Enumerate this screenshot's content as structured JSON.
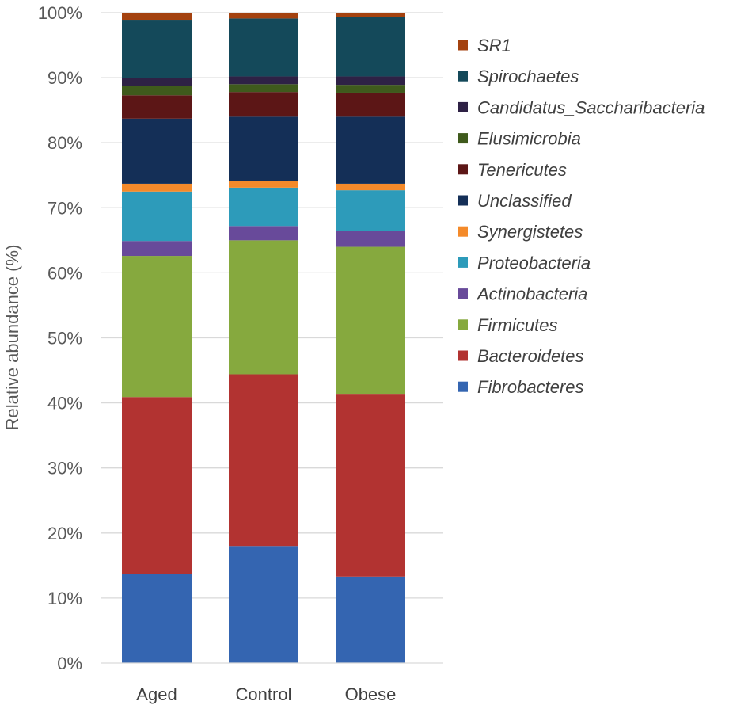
{
  "chart_data": {
    "type": "stacked-bar-100",
    "title": "",
    "xlabel": "",
    "ylabel": "Relative abundance (%)",
    "ylim": [
      0,
      100
    ],
    "yticks": [
      0,
      10,
      20,
      30,
      40,
      50,
      60,
      70,
      80,
      90,
      100
    ],
    "ytick_labels": [
      "0%",
      "10%",
      "20%",
      "30%",
      "40%",
      "50%",
      "60%",
      "70%",
      "80%",
      "90%",
      "100%"
    ],
    "grid": true,
    "legend_position": "right",
    "categories": [
      "Aged",
      "Control",
      "Obese"
    ],
    "series": [
      {
        "name": "Fibrobacteres",
        "color": "#3465B1",
        "values": [
          13.7,
          18.0,
          13.3
        ]
      },
      {
        "name": "Bacteroidetes",
        "color": "#B23331",
        "values": [
          27.2,
          26.4,
          28.1
        ]
      },
      {
        "name": "Firmicutes",
        "color": "#86A93E",
        "values": [
          21.7,
          20.6,
          22.6
        ]
      },
      {
        "name": "Actinobacteria",
        "color": "#684A9A",
        "values": [
          2.3,
          2.2,
          2.5
        ]
      },
      {
        "name": "Proteobacteria",
        "color": "#2D9BBA",
        "values": [
          7.6,
          5.9,
          6.2
        ]
      },
      {
        "name": "Synergistetes",
        "color": "#F48A2A",
        "values": [
          1.2,
          1.0,
          1.0
        ]
      },
      {
        "name": "Unclassified",
        "color": "#142F57",
        "values": [
          10.0,
          9.9,
          10.3
        ]
      },
      {
        "name": "Tenericutes",
        "color": "#5C1616",
        "values": [
          3.6,
          3.8,
          3.7
        ]
      },
      {
        "name": "Elusimicrobia",
        "color": "#3F5A1C",
        "values": [
          1.4,
          1.2,
          1.2
        ]
      },
      {
        "name": "Candidatus_Saccharibacteria",
        "color": "#2E2145",
        "values": [
          1.3,
          1.2,
          1.3
        ]
      },
      {
        "name": "Spirochaetes",
        "color": "#14495A",
        "values": [
          8.9,
          8.9,
          9.1
        ]
      },
      {
        "name": "SR1",
        "color": "#A4420F",
        "values": [
          1.1,
          0.9,
          0.7
        ]
      }
    ]
  }
}
